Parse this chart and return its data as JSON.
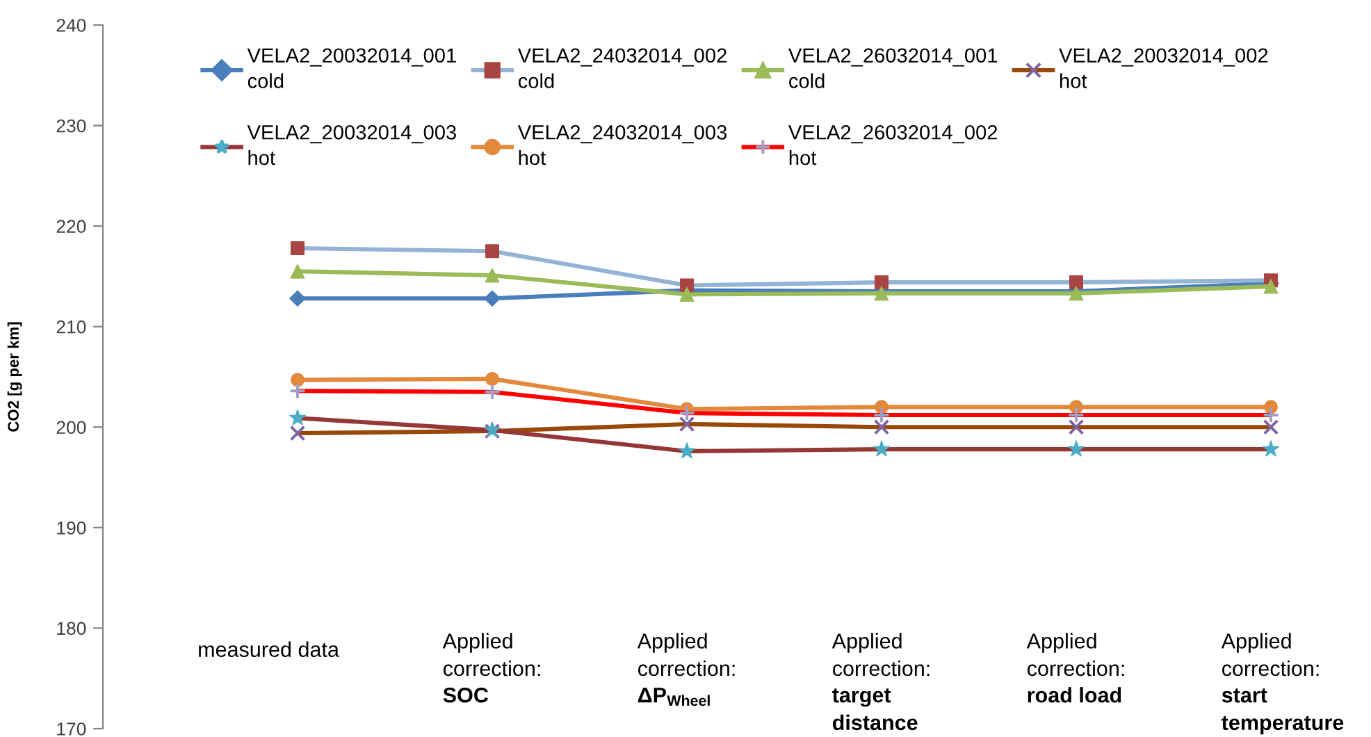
{
  "chart_data": {
    "type": "line",
    "ylabel": "CO2 [g per km]",
    "categories": [
      "measured data",
      "Applied correction: SOC",
      "Applied correction: ΔP$_{Wheel}$",
      "Applied correction: target distance",
      "Applied correction: road load",
      "Applied correction: start temperature"
    ],
    "ylim": [
      170,
      240
    ],
    "yticks": [
      170,
      180,
      190,
      200,
      210,
      220,
      230,
      240
    ],
    "grid": false,
    "legend": "top",
    "series": [
      {
        "name": "VELA2_20032014_001 cold",
        "color": "#4a7ebb",
        "marker": "diamond",
        "values": [
          212.8,
          212.8,
          213.6,
          213.5,
          213.5,
          214.3
        ]
      },
      {
        "name": "VELA2_24032014_002 cold",
        "color": "#95b3d7",
        "colors": [
          "#a84543",
          "#a84543",
          "#a84543",
          "#a84543",
          "#a84543",
          "#a84543"
        ],
        "marker": "square",
        "values": [
          217.8,
          217.5,
          214.1,
          214.4,
          214.4,
          214.6
        ]
      },
      {
        "name": "VELA2_26032014_001 cold",
        "color": "#9bbb59",
        "marker": "triangle",
        "values": [
          215.5,
          215.1,
          213.2,
          213.3,
          213.3,
          214.0
        ]
      },
      {
        "name": "VELA2_20032014_002 hot",
        "color": "#984807",
        "colors": [
          "#8064a2",
          "#8064a2",
          "#8064a2",
          "#8064a2",
          "#8064a2",
          "#8064a2"
        ],
        "marker": "cross",
        "values": [
          199.4,
          199.6,
          200.3,
          200.0,
          200.0,
          200.0
        ]
      },
      {
        "name": "VELA2_20032014_003 hot",
        "color": "#953735",
        "colors": [
          "#4bacc6",
          "#4bacc6",
          "#4bacc6",
          "#4bacc6",
          "#4bacc6",
          "#4bacc6"
        ],
        "marker": "star",
        "values": [
          200.9,
          199.7,
          197.6,
          197.8,
          197.8,
          197.8
        ]
      },
      {
        "name": "VELA2_24032014_003 hot",
        "color": "#e2893b",
        "marker": "circle",
        "values": [
          204.7,
          204.8,
          201.8,
          202.0,
          202.0,
          202.0
        ]
      },
      {
        "name": "VELA2_26032014_002 hot",
        "color": "#ff0000",
        "colors": [
          "#9e9ec8",
          "#9e9ec8",
          "#9e9ec8",
          "#9e9ec8",
          "#9e9ec8",
          "#9e9ec8"
        ],
        "marker": "plus",
        "values": [
          203.6,
          203.5,
          201.4,
          201.2,
          201.2,
          201.2
        ]
      }
    ]
  }
}
